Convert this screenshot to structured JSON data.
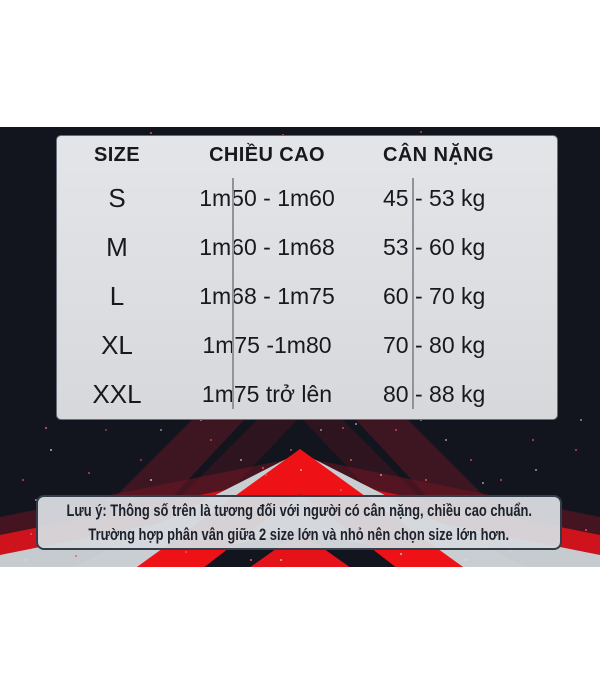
{
  "chart_data": {
    "type": "table",
    "title": "",
    "columns": [
      "SIZE",
      "CHIỀU CAO",
      "CÂN NẶNG"
    ],
    "rows": [
      [
        "S",
        "1m50 - 1m60",
        "45 - 53 kg"
      ],
      [
        "M",
        "1m60 - 1m68",
        "53 - 60 kg"
      ],
      [
        "L",
        "1m68 - 1m75",
        "60 - 70 kg"
      ],
      [
        "XL",
        "1m75 -1m80",
        "70 - 80 kg"
      ],
      [
        "XXL",
        "1m75 trở lên",
        "80 - 88 kg"
      ]
    ],
    "legend_position": "none",
    "grid": "column-dividers-only"
  },
  "note": {
    "line1": "Lưu ý: Thông số trên là tương đối với người có cân nặng, chiều cao chuẩn.",
    "line2": "Trường hợp phân vân giữa 2 size lớn và nhỏ nên chọn size lớn hơn."
  },
  "colors": {
    "accent_red": "#ee1217",
    "maroon_stripe": "#6e1624",
    "background_dark": "#12151e",
    "chevron_light": "#c9ced3",
    "panel_light": "#dcdee1",
    "note_bg": "#d5d8dc",
    "text_dark": "#17191f",
    "page_bg": "#ffffff"
  }
}
